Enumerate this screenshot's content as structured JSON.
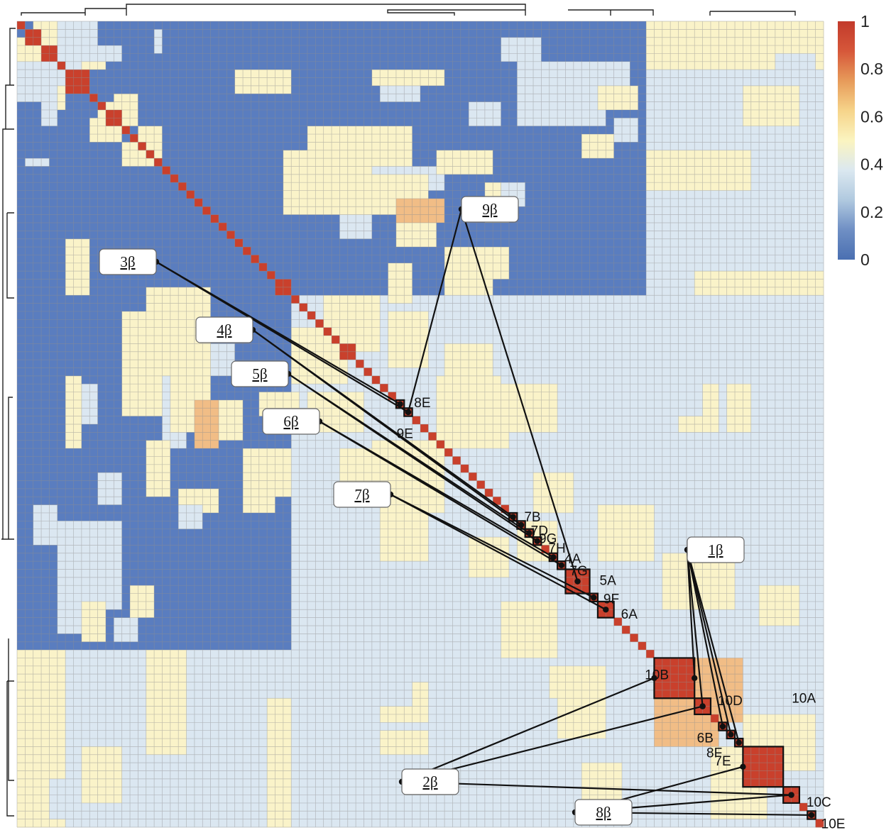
{
  "chart_data": {
    "type": "heatmap",
    "grid_size": 100,
    "colorbar": {
      "range": [
        0,
        1
      ],
      "ticks": [
        "1",
        "0.8",
        "0.6",
        "0.4",
        "0.2",
        "0"
      ],
      "colors": [
        "#4a6fb1",
        "#6f8fc4",
        "#b0c9df",
        "#dbe8f0",
        "#fbf4c0",
        "#f6d48a",
        "#e79b5a",
        "#d6573a",
        "#c23a2b"
      ]
    },
    "base_levels": [
      {
        "value": 0.05,
        "color": "#5a7dbf"
      },
      {
        "value": 0.3,
        "color": "#dbe7f1"
      },
      {
        "value": 0.45,
        "color": "#faf3c9"
      },
      {
        "value": 0.7,
        "color": "#f1bd86"
      },
      {
        "value": 1.0,
        "color": "#c9402c"
      }
    ],
    "blocks": [
      {
        "label": "8E",
        "start": 47,
        "end": 47
      },
      {
        "label": "9E",
        "start": 48,
        "end": 48
      },
      {
        "label": "7B",
        "start": 61,
        "end": 61
      },
      {
        "label": "7D",
        "start": 62,
        "end": 62
      },
      {
        "label": "9G",
        "start": 63,
        "end": 63
      },
      {
        "label": "7H",
        "start": 64,
        "end": 64
      },
      {
        "label": "4A",
        "start": 66,
        "end": 66
      },
      {
        "label": "7G",
        "start": 67,
        "end": 67
      },
      {
        "label": "5A",
        "start": 68,
        "end": 70
      },
      {
        "label": "9F",
        "start": 71,
        "end": 71
      },
      {
        "label": "6A",
        "start": 72,
        "end": 73
      },
      {
        "label": "10B",
        "start": 79,
        "end": 83
      },
      {
        "label": "10D",
        "start": 84,
        "end": 85
      },
      {
        "label": "6B",
        "start": 87,
        "end": 87
      },
      {
        "label": "8F",
        "start": 88,
        "end": 88
      },
      {
        "label": "7E",
        "start": 89,
        "end": 89
      },
      {
        "label": "10A",
        "start": 90,
        "end": 94
      },
      {
        "label": "10C",
        "start": 95,
        "end": 96
      },
      {
        "label": "10E",
        "start": 98,
        "end": 98
      }
    ],
    "groups": [
      {
        "label": "1β",
        "members": [
          "10B",
          "10D",
          "6B",
          "8F",
          "7E"
        ]
      },
      {
        "label": "2β",
        "members": [
          "10B",
          "10D",
          "10C"
        ]
      },
      {
        "label": "3β",
        "members": [
          "8E",
          "9E"
        ]
      },
      {
        "label": "4β",
        "members": [
          "7B",
          "7D"
        ]
      },
      {
        "label": "5β",
        "members": [
          "9G",
          "7H"
        ]
      },
      {
        "label": "6β",
        "members": [
          "4A",
          "7G"
        ]
      },
      {
        "label": "7β",
        "members": [
          "9F",
          "6A"
        ]
      },
      {
        "label": "8β",
        "members": [
          "10A",
          "10C",
          "10E"
        ]
      },
      {
        "label": "9β",
        "members": [
          "9E",
          "5A"
        ]
      }
    ]
  }
}
